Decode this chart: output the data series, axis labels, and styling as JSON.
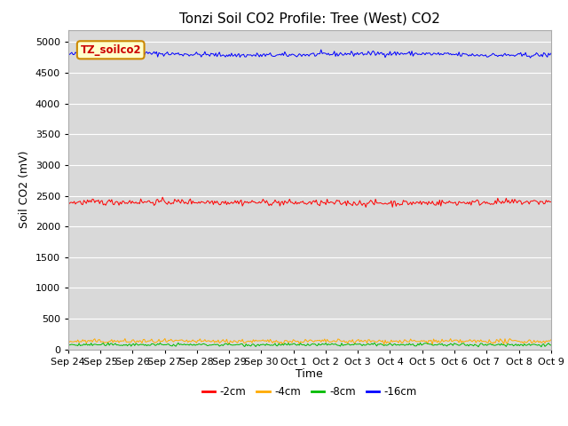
{
  "title": "Tonzi Soil CO2 Profile: Tree (West) CO2",
  "ylabel": "Soil CO2 (mV)",
  "xlabel": "Time",
  "legend_label": "TZ_soilco2",
  "tick_labels": [
    "Sep 24",
    "Sep 25",
    "Sep 26",
    "Sep 27",
    "Sep 28",
    "Sep 29",
    "Sep 30",
    "Oct 1",
    "Oct 2",
    "Oct 3",
    "Oct 4",
    "Oct 5",
    "Oct 6",
    "Oct 7",
    "Oct 8",
    "Oct 9"
  ],
  "ylim": [
    0,
    5200
  ],
  "yticks": [
    0,
    500,
    1000,
    1500,
    2000,
    2500,
    3000,
    3500,
    4000,
    4500,
    5000
  ],
  "series": {
    "-2cm": {
      "color": "#ff0000",
      "mean": 2390,
      "noise": 25,
      "label": "-2cm"
    },
    "-4cm": {
      "color": "#ffaa00",
      "mean": 130,
      "noise": 18,
      "label": "-4cm"
    },
    "-8cm": {
      "color": "#00bb00",
      "mean": 75,
      "noise": 12,
      "label": "-8cm"
    },
    "-16cm": {
      "color": "#0000ff",
      "mean": 4800,
      "noise": 20,
      "label": "-16cm"
    }
  },
  "n_points": 400,
  "fig_bg": "#ffffff",
  "plot_bg": "#d9d9d9",
  "grid_color": "#ffffff",
  "title_fontsize": 11,
  "label_fontsize": 9,
  "tick_fontsize": 8
}
